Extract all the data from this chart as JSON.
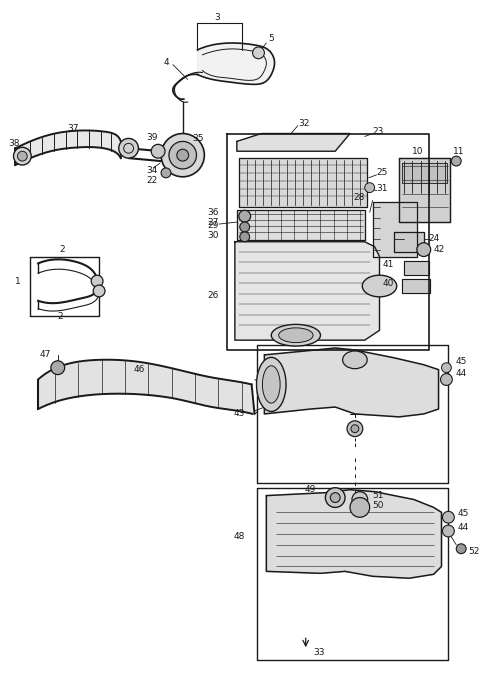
{
  "bg_color": "#ffffff",
  "line_color": "#1a1a1a",
  "figsize": [
    4.8,
    6.98
  ],
  "dpi": 100,
  "lw_main": 1.0,
  "lw_thin": 0.6,
  "lw_thick": 1.4,
  "label_fs": 6.5
}
